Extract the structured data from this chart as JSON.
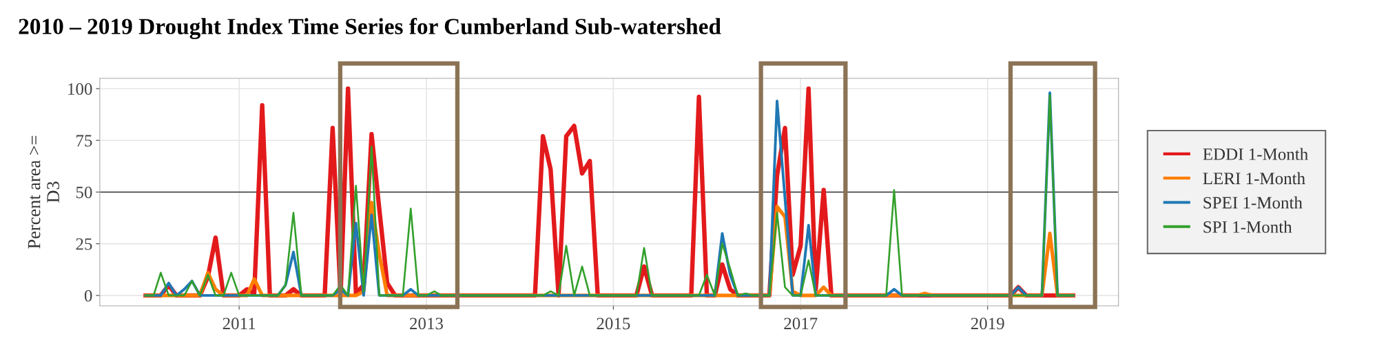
{
  "chart_data": {
    "type": "line",
    "title": "2010 – 2019 Drought Index Time Series for Cumberland Sub-watershed",
    "ylabel": "Percent area >= D3",
    "x": [
      "2010-01",
      "2010-02",
      "2010-03",
      "2010-04",
      "2010-05",
      "2010-06",
      "2010-07",
      "2010-08",
      "2010-09",
      "2010-10",
      "2010-11",
      "2010-12",
      "2011-01",
      "2011-02",
      "2011-03",
      "2011-04",
      "2011-05",
      "2011-06",
      "2011-07",
      "2011-08",
      "2011-09",
      "2011-10",
      "2011-11",
      "2011-12",
      "2012-01",
      "2012-02",
      "2012-03",
      "2012-04",
      "2012-05",
      "2012-06",
      "2012-07",
      "2012-08",
      "2012-09",
      "2012-10",
      "2012-11",
      "2012-12",
      "2013-01",
      "2013-02",
      "2013-03",
      "2013-04",
      "2013-05",
      "2013-06",
      "2013-07",
      "2013-08",
      "2013-09",
      "2013-10",
      "2013-11",
      "2013-12",
      "2014-01",
      "2014-02",
      "2014-03",
      "2014-04",
      "2014-05",
      "2014-06",
      "2014-07",
      "2014-08",
      "2014-09",
      "2014-10",
      "2014-11",
      "2014-12",
      "2015-01",
      "2015-02",
      "2015-03",
      "2015-04",
      "2015-05",
      "2015-06",
      "2015-07",
      "2015-08",
      "2015-09",
      "2015-10",
      "2015-11",
      "2015-12",
      "2016-01",
      "2016-02",
      "2016-03",
      "2016-04",
      "2016-05",
      "2016-06",
      "2016-07",
      "2016-08",
      "2016-09",
      "2016-10",
      "2016-11",
      "2016-12",
      "2017-01",
      "2017-02",
      "2017-03",
      "2017-04",
      "2017-05",
      "2017-06",
      "2017-07",
      "2017-08",
      "2017-09",
      "2017-10",
      "2017-11",
      "2017-12",
      "2018-01",
      "2018-02",
      "2018-03",
      "2018-04",
      "2018-05",
      "2018-06",
      "2018-07",
      "2018-08",
      "2018-09",
      "2018-10",
      "2018-11",
      "2018-12",
      "2019-01",
      "2019-02",
      "2019-03",
      "2019-04",
      "2019-05",
      "2019-06",
      "2019-07",
      "2019-08",
      "2019-09",
      "2019-10",
      "2019-11",
      "2019-12"
    ],
    "series": [
      {
        "name": "EDDI 1-Month",
        "color": "#e31a1c",
        "values": [
          0,
          0,
          0,
          5,
          0,
          0,
          0,
          0,
          9,
          28,
          0,
          0,
          0,
          3,
          1,
          92,
          0,
          0,
          0,
          3,
          0,
          0,
          0,
          0,
          81,
          0,
          100,
          1,
          5,
          78,
          42,
          6,
          0,
          0,
          0,
          0,
          0,
          0,
          0,
          0,
          0,
          0,
          0,
          0,
          0,
          0,
          0,
          0,
          0,
          0,
          0,
          77,
          61,
          0,
          77,
          82,
          59,
          65,
          0,
          0,
          0,
          0,
          0,
          0,
          14,
          0,
          0,
          0,
          0,
          0,
          0,
          96,
          0,
          0,
          15,
          3,
          0,
          0,
          0,
          0,
          0,
          58,
          81,
          10,
          24,
          100,
          3,
          51,
          0,
          0,
          0,
          0,
          0,
          0,
          0,
          0,
          0,
          0,
          0,
          0,
          0,
          0,
          0,
          0,
          0,
          0,
          0,
          0,
          0,
          0,
          0,
          0,
          4,
          0,
          0,
          0,
          0,
          0,
          0,
          0
        ]
      },
      {
        "name": "LERI 1-Month",
        "color": "#ff7f00",
        "values": [
          0,
          0,
          0,
          0,
          0,
          0,
          0,
          0,
          11,
          3,
          0,
          0,
          0,
          0,
          8,
          0,
          0,
          0,
          0,
          0,
          0,
          0,
          0,
          0,
          0,
          0,
          0,
          0,
          2,
          45,
          20,
          0,
          0,
          0,
          0,
          0,
          0,
          0,
          0,
          0,
          0,
          0,
          0,
          0,
          0,
          0,
          0,
          0,
          0,
          0,
          0,
          0,
          0,
          0,
          0,
          0,
          0,
          0,
          0,
          0,
          0,
          0,
          0,
          0,
          0,
          0,
          0,
          0,
          0,
          0,
          0,
          0,
          0,
          0,
          0,
          0,
          0,
          0,
          0,
          0,
          0,
          43,
          38,
          2,
          0,
          0,
          0,
          4,
          0,
          0,
          0,
          0,
          0,
          0,
          0,
          0,
          0,
          0,
          0,
          0,
          1,
          0,
          0,
          0,
          0,
          0,
          0,
          0,
          0,
          0,
          0,
          0,
          0,
          0,
          0,
          0,
          30,
          0,
          0,
          0
        ]
      },
      {
        "name": "SPEI 1-Month",
        "color": "#1f78b4",
        "values": [
          0,
          0,
          0,
          6,
          0,
          3,
          7,
          0,
          0,
          0,
          0,
          0,
          0,
          0,
          0,
          0,
          0,
          0,
          5,
          21,
          0,
          0,
          0,
          0,
          0,
          3,
          0,
          35,
          0,
          39,
          0,
          0,
          0,
          0,
          3,
          0,
          0,
          0,
          0,
          0,
          0,
          0,
          0,
          0,
          0,
          0,
          0,
          0,
          0,
          0,
          0,
          0,
          0,
          0,
          0,
          0,
          0,
          0,
          0,
          0,
          0,
          0,
          0,
          0,
          0,
          0,
          0,
          0,
          0,
          0,
          0,
          0,
          0,
          0,
          30,
          10,
          0,
          0,
          0,
          0,
          0,
          94,
          47,
          0,
          0,
          34,
          0,
          0,
          0,
          0,
          0,
          0,
          0,
          0,
          0,
          0,
          3,
          0,
          0,
          0,
          0,
          0,
          0,
          0,
          0,
          0,
          0,
          0,
          0,
          0,
          0,
          0,
          4,
          0,
          0,
          0,
          98,
          0,
          0,
          0
        ]
      },
      {
        "name": "SPI 1-Month",
        "color": "#33a02c",
        "values": [
          0,
          0,
          11,
          0,
          0,
          0,
          7,
          0,
          10,
          0,
          0,
          11,
          0,
          0,
          0,
          0,
          0,
          0,
          5,
          40,
          0,
          0,
          0,
          0,
          0,
          5,
          0,
          53,
          2,
          72,
          0,
          0,
          0,
          0,
          42,
          0,
          0,
          2,
          0,
          0,
          0,
          0,
          0,
          0,
          0,
          0,
          0,
          0,
          0,
          0,
          0,
          0,
          2,
          0,
          24,
          0,
          14,
          0,
          0,
          0,
          0,
          0,
          0,
          0,
          23,
          0,
          0,
          0,
          0,
          0,
          0,
          0,
          10,
          0,
          25,
          13,
          0,
          1,
          0,
          0,
          0,
          40,
          4,
          0,
          0,
          17,
          0,
          0,
          0,
          0,
          0,
          0,
          0,
          0,
          0,
          0,
          51,
          0,
          0,
          0,
          0,
          0,
          0,
          0,
          0,
          0,
          0,
          0,
          0,
          0,
          0,
          0,
          0,
          0,
          0,
          0,
          97,
          0,
          0,
          0
        ]
      }
    ],
    "xlim": [
      "2009-07-06",
      "2020-05-26"
    ],
    "xticks": [
      {
        "value": "2011-01-01",
        "label": "2011"
      },
      {
        "value": "2013-01-01",
        "label": "2013"
      },
      {
        "value": "2015-01-01",
        "label": "2015"
      },
      {
        "value": "2017-01-01",
        "label": "2017"
      },
      {
        "value": "2019-01-01",
        "label": "2019"
      }
    ],
    "ylim": [
      -5,
      105
    ],
    "yticks": [
      0,
      25,
      50,
      75,
      100
    ],
    "ref_lines": [
      {
        "axis": "y",
        "value": 50,
        "color": "#333333"
      }
    ],
    "grid": true,
    "legend": "right",
    "line_style": "solid",
    "marker": "none"
  }
}
